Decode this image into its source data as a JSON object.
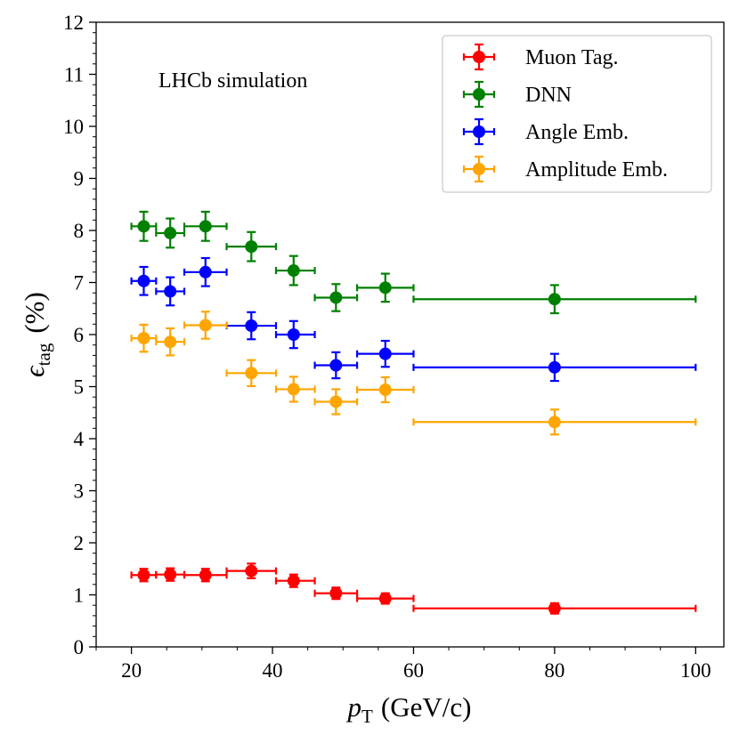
{
  "chart_data": {
    "type": "scatter",
    "annotation": "LHCb simulation",
    "xlabel": {
      "symbol": "p",
      "subscript": "T",
      "units": "(GeV/c)"
    },
    "ylabel": {
      "symbol": "ϵ",
      "subscript": "tag",
      "units": "(%)"
    },
    "xlim": [
      15,
      104
    ],
    "ylim": [
      0,
      12
    ],
    "x_ticks": [
      20,
      40,
      60,
      80,
      100
    ],
    "y_ticks": [
      0,
      1,
      2,
      3,
      4,
      5,
      6,
      7,
      8,
      9,
      10,
      11,
      12
    ],
    "legend_position": "top-right",
    "bins": [
      {
        "center": 21.75,
        "low": 20,
        "high": 23.5
      },
      {
        "center": 25.5,
        "low": 23.5,
        "high": 27.5
      },
      {
        "center": 30.5,
        "low": 27.5,
        "high": 33.5
      },
      {
        "center": 37,
        "low": 33.5,
        "high": 40.5
      },
      {
        "center": 43,
        "low": 40.5,
        "high": 46
      },
      {
        "center": 49,
        "low": 46,
        "high": 52
      },
      {
        "center": 56,
        "low": 52,
        "high": 60
      },
      {
        "center": 80,
        "low": 60,
        "high": 100
      }
    ],
    "series": [
      {
        "name": "Muon Tag.",
        "color": "#ff0000",
        "values": [
          1.38,
          1.39,
          1.38,
          1.46,
          1.27,
          1.03,
          0.93,
          0.74
        ],
        "errors": [
          0.12,
          0.12,
          0.12,
          0.14,
          0.12,
          0.11,
          0.1,
          0.1
        ]
      },
      {
        "name": "DNN",
        "color": "#008000",
        "values": [
          8.08,
          7.95,
          8.08,
          7.69,
          7.23,
          6.71,
          6.9,
          6.68
        ],
        "errors": [
          0.28,
          0.28,
          0.28,
          0.28,
          0.28,
          0.26,
          0.27,
          0.27
        ]
      },
      {
        "name": "Angle Emb.",
        "color": "#0000ff",
        "values": [
          7.03,
          6.83,
          7.2,
          6.17,
          6.0,
          5.41,
          5.63,
          5.37
        ],
        "errors": [
          0.27,
          0.27,
          0.27,
          0.26,
          0.26,
          0.25,
          0.25,
          0.26
        ]
      },
      {
        "name": "Amplitude Emb.",
        "color": "#ffa500",
        "values": [
          5.93,
          5.86,
          6.18,
          5.26,
          4.95,
          4.71,
          4.94,
          4.32
        ],
        "errors": [
          0.26,
          0.26,
          0.26,
          0.25,
          0.24,
          0.24,
          0.24,
          0.24
        ]
      }
    ]
  }
}
